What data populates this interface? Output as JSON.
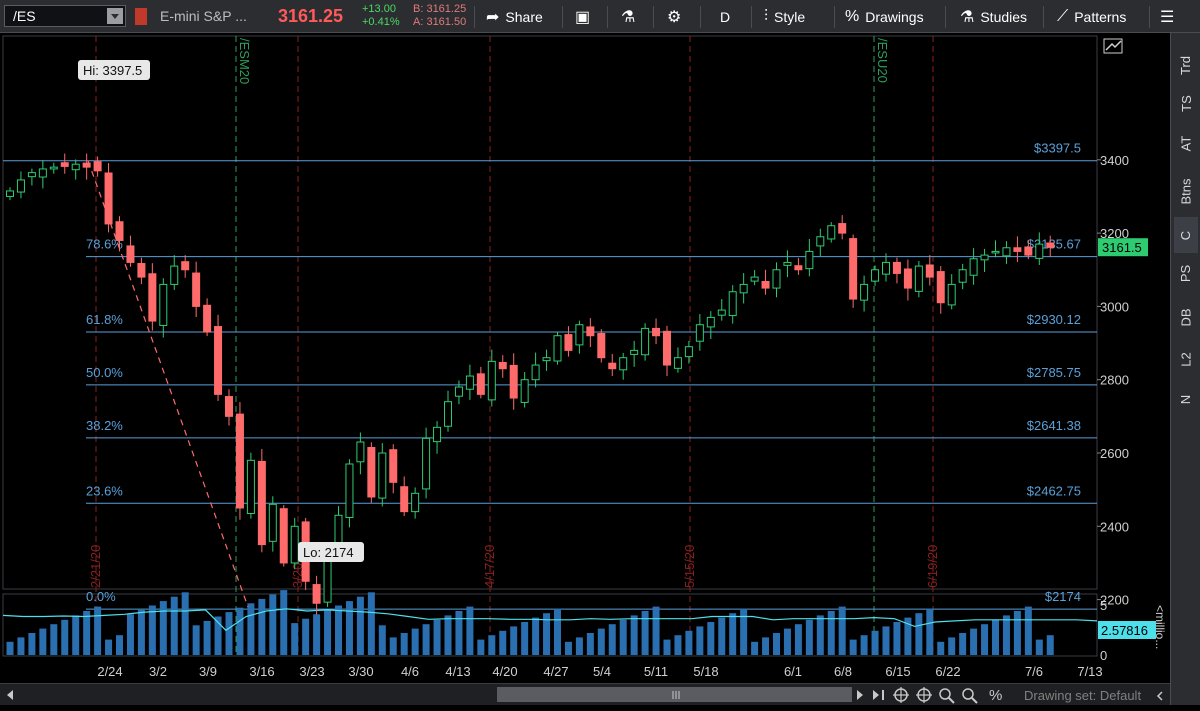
{
  "toolbar": {
    "symbol": "/ES",
    "instrument_name": "E-mini S&P ...",
    "last_price": "3161.25",
    "change_abs": "+13.00",
    "change_pct": "+0.41%",
    "bid": "B: 3161.25",
    "ask": "A: 3161.50",
    "share_label": "Share",
    "aggregation_label": "D",
    "style_label": "Style",
    "drawings_label": "Drawings",
    "studies_label": "Studies",
    "patterns_label": "Patterns",
    "colors": {
      "last_price": "#ff5a5a",
      "change": "#4cd964",
      "bidask": "#e07a7a"
    }
  },
  "sidebar": {
    "tabs": [
      "Trd",
      "TS",
      "AT",
      "Btns",
      "C",
      "PS",
      "DB",
      "L2",
      "N"
    ],
    "active": "C"
  },
  "chart_data": {
    "type": "candlestick",
    "symbol": "/ES",
    "price_axis_ticks": [
      3400,
      3200,
      3000,
      2800,
      2600,
      2400,
      2200
    ],
    "current_price_label": "3161.5",
    "high_label": "Hi: 3397.5",
    "low_label": "Lo: 2174",
    "fib_levels": [
      {
        "pct": "78.6%",
        "price": 3135.67,
        "price_label": "$3135.67"
      },
      {
        "pct": "61.8%",
        "price": 2930.12,
        "price_label": "$2930.12"
      },
      {
        "pct": "50.0%",
        "price": 2785.75,
        "price_label": "$2785.75"
      },
      {
        "pct": "38.2%",
        "price": 2641.38,
        "price_label": "$2641.38"
      },
      {
        "pct": "23.6%",
        "price": 2462.75,
        "price_label": "$2462.75"
      },
      {
        "pct": "0.0%",
        "price": 2174,
        "price_label": "$2174"
      }
    ],
    "high_level": {
      "price": 3397.5,
      "price_label": "$3397.5"
    },
    "x_dates": [
      "2/24",
      "3/2",
      "3/9",
      "3/16",
      "3/23",
      "3/30",
      "4/6",
      "4/13",
      "4/20",
      "4/27",
      "5/4",
      "5/11",
      "5/18",
      "6/1",
      "6/8",
      "6/15",
      "6/22",
      "7/6",
      "7/13"
    ],
    "vertical_markers": [
      {
        "label": "2/21/20",
        "kind": "red"
      },
      {
        "label": "/ESM20",
        "kind": "green"
      },
      {
        "label": "3/20/20",
        "kind": "red"
      },
      {
        "label": "4/17/20",
        "kind": "red"
      },
      {
        "label": "5/15/20",
        "kind": "red"
      },
      {
        "label": "/ESU20",
        "kind": "green"
      },
      {
        "label": "6/19/20",
        "kind": "red"
      }
    ],
    "closes": [
      3315,
      3345,
      3365,
      3375,
      3380,
      3382,
      3388,
      3380,
      3370,
      3225,
      3180,
      3120,
      3080,
      2960,
      3060,
      3110,
      3100,
      3000,
      2930,
      2760,
      2700,
      2450,
      2580,
      2350,
      2460,
      2300,
      2400,
      2250,
      2190,
      2310,
      2430,
      2570,
      2630,
      2480,
      2600,
      2520,
      2440,
      2490,
      2640,
      2670,
      2740,
      2780,
      2810,
      2760,
      2850,
      2830,
      2750,
      2800,
      2840,
      2860,
      2920,
      2880,
      2950,
      2920,
      2860,
      2830,
      2860,
      2880,
      2940,
      2920,
      2840,
      2860,
      2890,
      2950,
      2970,
      2990,
      3040,
      3060,
      3080,
      3050,
      3100,
      3120,
      3100,
      3150,
      3190,
      3220,
      3200,
      3020,
      3060,
      3100,
      3120,
      3090,
      3050,
      3110,
      3080,
      3010,
      3060,
      3100,
      3130,
      3140,
      3150,
      3160,
      3150,
      3140,
      3170,
      3161
    ],
    "volume_axis_ticks": [
      5,
      0
    ],
    "volume_axis_unit": "<millio...",
    "volume_current_label": "2.57816",
    "volume_ratio_line": [
      0.72,
      0.7,
      0.7,
      0.71,
      0.7,
      0.72,
      0.74,
      0.78,
      0.8,
      0.8,
      0.82,
      0.45,
      0.7,
      0.8,
      0.84,
      0.8,
      0.82,
      0.8,
      0.78,
      0.75,
      0.7,
      0.65,
      0.66,
      0.66,
      0.66,
      0.65,
      0.65,
      0.64,
      0.64,
      0.66,
      0.65,
      0.66,
      0.66,
      0.66,
      0.66,
      0.7,
      0.7,
      0.7,
      0.64,
      0.66,
      0.66,
      0.66,
      0.66,
      0.68,
      0.66,
      0.52,
      0.6,
      0.62,
      0.64,
      0.64,
      0.64,
      0.64,
      0.64,
      0.64,
      0.62
    ]
  },
  "scrollbar": {
    "drawing_set_label": "Drawing set: Default"
  }
}
